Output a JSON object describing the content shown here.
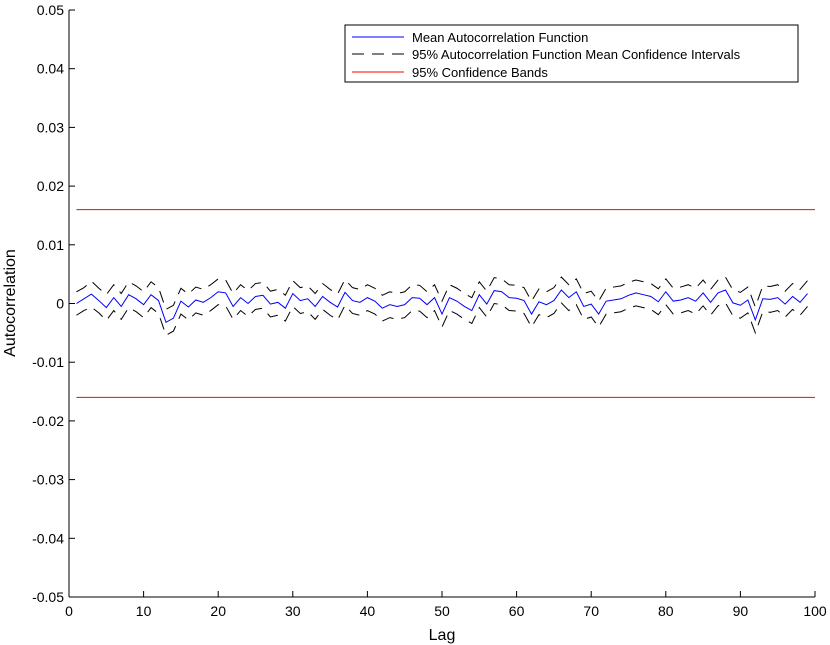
{
  "chart_data": {
    "type": "line",
    "title": "",
    "xlabel": "Lag",
    "ylabel": "Autocorrelation",
    "xlim": [
      0,
      100
    ],
    "ylim": [
      -0.05,
      0.05
    ],
    "xticks": [
      0,
      10,
      20,
      30,
      40,
      50,
      60,
      70,
      80,
      90,
      100
    ],
    "yticks": [
      -0.05,
      -0.04,
      -0.03,
      -0.02,
      -0.01,
      0,
      0.01,
      0.02,
      0.03,
      0.04,
      0.05
    ],
    "ytick_labels": [
      "-0.05",
      "-0.04",
      "-0.03",
      "-0.02",
      "-0.01",
      "0",
      "0.01",
      "0.02",
      "0.03",
      "0.04",
      "0.05"
    ],
    "grid": false,
    "legend_position": "top-right",
    "x": [
      1,
      2,
      3,
      4,
      5,
      6,
      7,
      8,
      9,
      10,
      11,
      12,
      13,
      14,
      15,
      16,
      17,
      18,
      19,
      20,
      21,
      22,
      23,
      24,
      25,
      26,
      27,
      28,
      29,
      30,
      31,
      32,
      33,
      34,
      35,
      36,
      37,
      38,
      39,
      40,
      41,
      42,
      43,
      44,
      45,
      46,
      47,
      48,
      49,
      50,
      51,
      52,
      53,
      54,
      55,
      56,
      57,
      58,
      59,
      60,
      61,
      62,
      63,
      64,
      65,
      66,
      67,
      68,
      69,
      70,
      71,
      72,
      73,
      74,
      75,
      76,
      77,
      78,
      79,
      80,
      81,
      82,
      83,
      84,
      85,
      86,
      87,
      88,
      89,
      90,
      91,
      92,
      93,
      94,
      95,
      96,
      97,
      98,
      99
    ],
    "series": [
      {
        "name": "Mean Autocorrelation Function",
        "color": "#0000ff",
        "style": "solid",
        "values": [
          0.0,
          0.0008,
          0.0016,
          0.0005,
          -0.0007,
          0.001,
          -0.0005,
          0.0015,
          0.0008,
          -0.0002,
          0.0015,
          0.0005,
          -0.0032,
          -0.0025,
          0.0004,
          -0.0006,
          0.0006,
          0.0002,
          0.001,
          0.002,
          0.0018,
          -0.0005,
          0.001,
          0.0,
          0.0012,
          0.0014,
          -0.0001,
          0.0002,
          -0.0008,
          0.0017,
          0.0005,
          0.0008,
          -0.0005,
          0.0012,
          0.0002,
          -0.0006,
          0.0019,
          0.0005,
          0.0002,
          0.001,
          0.0004,
          -0.0008,
          -0.0002,
          -0.0005,
          -0.0002,
          0.001,
          0.0009,
          -0.0002,
          0.001,
          -0.0018,
          0.001,
          0.0004,
          -0.0005,
          -0.0012,
          0.0015,
          -0.0001,
          0.0022,
          0.002,
          0.001,
          0.0009,
          0.0005,
          -0.0018,
          0.0003,
          -0.0002,
          0.0005,
          0.0023,
          0.001,
          0.002,
          -0.0005,
          -0.0001,
          -0.0018,
          0.0004,
          0.0006,
          0.0008,
          0.0014,
          0.0018,
          0.0015,
          0.0012,
          0.0003,
          0.002,
          0.0004,
          0.0006,
          0.001,
          0.0004,
          0.0018,
          0.0002,
          0.0018,
          0.0023,
          0.0001,
          -0.0003,
          0.0006,
          -0.0028,
          0.0008,
          0.0007,
          0.001,
          -0.0001,
          0.0012,
          0.0002,
          0.0017
        ]
      },
      {
        "name": "95% Autocorrelation Function Mean Confidence Intervals",
        "color": "#000000",
        "style": "dashed",
        "upper": [
          0.002,
          0.0027,
          0.0038,
          0.0026,
          0.0015,
          0.0032,
          0.0017,
          0.0037,
          0.003,
          0.002,
          0.0037,
          0.0027,
          -0.001,
          -0.0003,
          0.0026,
          0.0016,
          0.0028,
          0.0024,
          0.0032,
          0.0042,
          0.004,
          0.0017,
          0.0032,
          0.0022,
          0.0034,
          0.0036,
          0.0021,
          0.0024,
          0.0014,
          0.0039,
          0.0027,
          0.003,
          0.0017,
          0.0034,
          0.0024,
          0.0016,
          0.0041,
          0.0027,
          0.0024,
          0.0032,
          0.0026,
          0.0014,
          0.002,
          0.0017,
          0.002,
          0.0032,
          0.0031,
          0.002,
          0.0032,
          0.0004,
          0.0032,
          0.0026,
          0.0017,
          0.001,
          0.0037,
          0.0021,
          0.0044,
          0.0042,
          0.0032,
          0.0031,
          0.0027,
          0.0004,
          0.0025,
          0.002,
          0.0027,
          0.0045,
          0.0032,
          0.0042,
          0.0017,
          0.0021,
          0.0004,
          0.0026,
          0.0028,
          0.003,
          0.0036,
          0.004,
          0.0037,
          0.0034,
          0.0025,
          0.0042,
          0.0026,
          0.0028,
          0.0032,
          0.0026,
          0.004,
          0.0024,
          0.004,
          0.0045,
          0.0023,
          0.0019,
          0.0028,
          -0.0006,
          0.003,
          0.0029,
          0.0032,
          0.0021,
          0.0034,
          0.0024,
          0.0039
        ],
        "lower": [
          -0.002,
          -0.0012,
          -0.0006,
          -0.0016,
          -0.0029,
          -0.0012,
          -0.0027,
          -0.0007,
          -0.0014,
          -0.0024,
          -0.0007,
          -0.0017,
          -0.0054,
          -0.0047,
          -0.0018,
          -0.0028,
          -0.0016,
          -0.002,
          -0.0012,
          -0.0002,
          -0.0004,
          -0.0027,
          -0.0012,
          -0.0022,
          -0.001,
          -0.0008,
          -0.0023,
          -0.002,
          -0.003,
          -0.0005,
          -0.0017,
          -0.0014,
          -0.0027,
          -0.001,
          -0.002,
          -0.0028,
          -0.0003,
          -0.0017,
          -0.002,
          -0.0012,
          -0.0018,
          -0.003,
          -0.0024,
          -0.0027,
          -0.0024,
          -0.0012,
          -0.0013,
          -0.0024,
          -0.0012,
          -0.004,
          -0.0012,
          -0.0018,
          -0.0027,
          -0.0034,
          -0.0007,
          -0.0023,
          0.0,
          -0.0002,
          -0.0012,
          -0.0013,
          -0.0017,
          -0.004,
          -0.0019,
          -0.0024,
          -0.0017,
          0.0001,
          -0.0012,
          -0.0002,
          -0.0027,
          -0.0023,
          -0.004,
          -0.0018,
          -0.0016,
          -0.0014,
          -0.0008,
          -0.0004,
          -0.0007,
          -0.001,
          -0.0019,
          -0.0002,
          -0.0018,
          -0.0016,
          -0.0012,
          -0.0018,
          -0.0004,
          -0.002,
          -0.0004,
          0.0001,
          -0.0021,
          -0.0025,
          -0.0016,
          -0.005,
          -0.0014,
          -0.0015,
          -0.0012,
          -0.0023,
          -0.001,
          -0.002,
          -0.0005
        ]
      },
      {
        "name": "95% Confidence Bands",
        "color": "#ff0000",
        "style": "solid",
        "bands": [
          0.016,
          -0.016
        ]
      }
    ]
  }
}
